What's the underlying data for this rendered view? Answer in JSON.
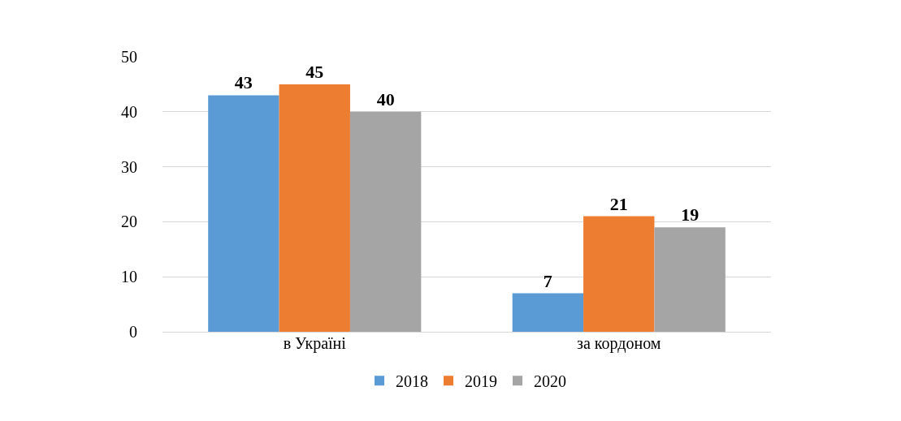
{
  "chart_data": {
    "type": "bar",
    "categories": [
      "в Україні",
      "за кордоном"
    ],
    "series": [
      {
        "name": "2018",
        "color": "#5b9bd5",
        "values": [
          43,
          7
        ]
      },
      {
        "name": "2019",
        "color": "#ed7d31",
        "values": [
          45,
          21
        ]
      },
      {
        "name": "2020",
        "color": "#a5a5a5",
        "values": [
          40,
          19
        ]
      }
    ],
    "ylim": [
      0,
      50
    ],
    "yticks": [
      0,
      10,
      20,
      30,
      40,
      50
    ],
    "grid": "y",
    "legend": "bottom",
    "data_labels": true
  }
}
